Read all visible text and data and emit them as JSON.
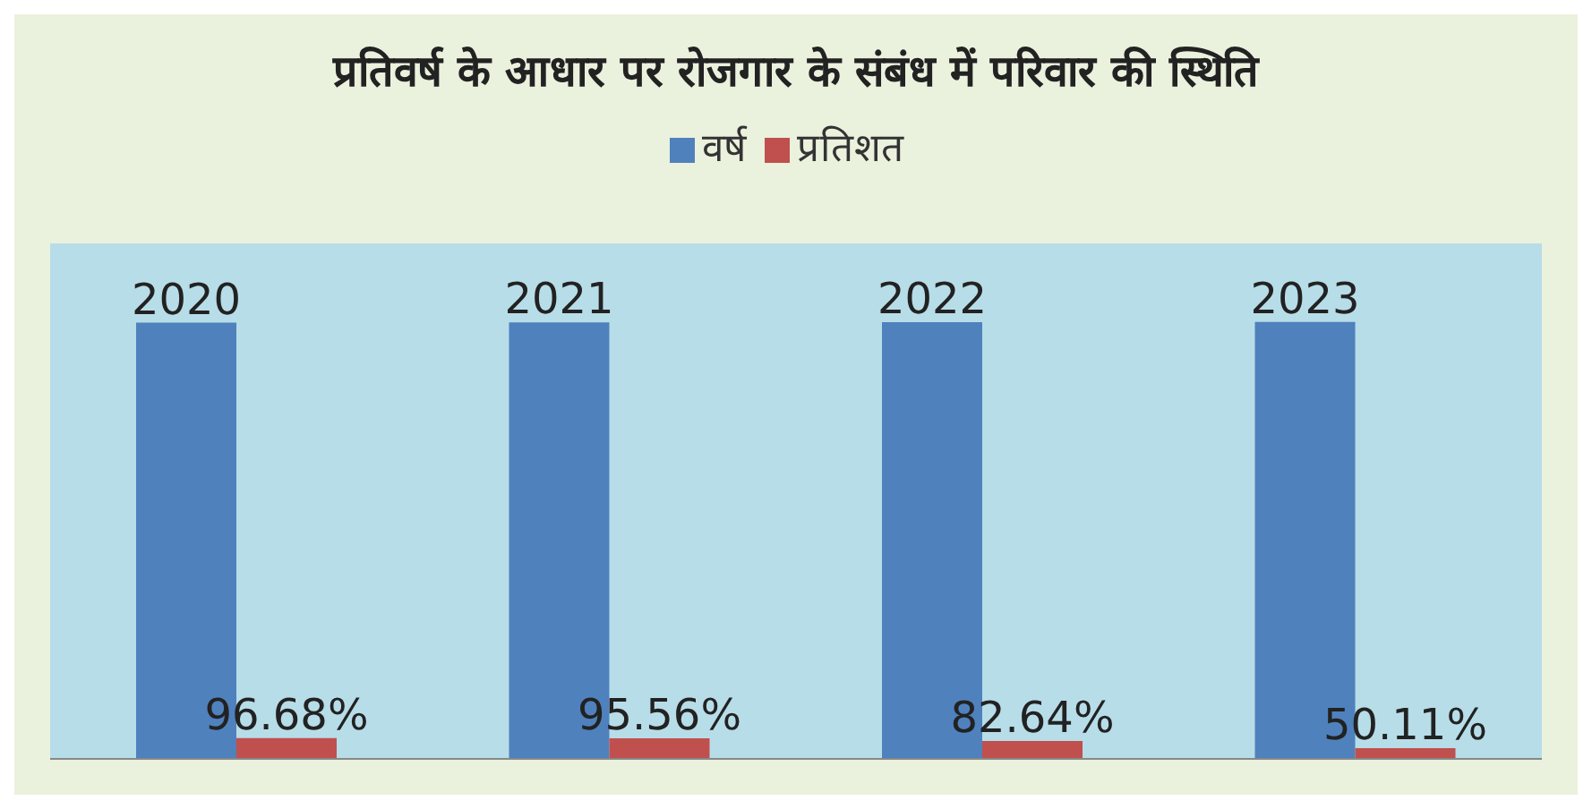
{
  "chart_data": {
    "type": "bar",
    "title": "प्रतिवर्ष के आधार पर रोजगार के संबंध में परिवार की स्थिति",
    "categories": [
      null,
      null,
      null,
      null
    ],
    "series": [
      {
        "name": "वर्ष",
        "color": "#4f81bd",
        "values": [
          2020,
          2021,
          2022,
          2023
        ],
        "value_labels": [
          "2020",
          "2021",
          "2022",
          "2023"
        ]
      },
      {
        "name": "प्रतिशत",
        "color": "#c0504d",
        "values": [
          96.68,
          95.56,
          82.64,
          50.11
        ],
        "value_labels": [
          "96.68%",
          "95.56%",
          "82.64%",
          "50.11%"
        ]
      }
    ],
    "legend": "top"
  }
}
